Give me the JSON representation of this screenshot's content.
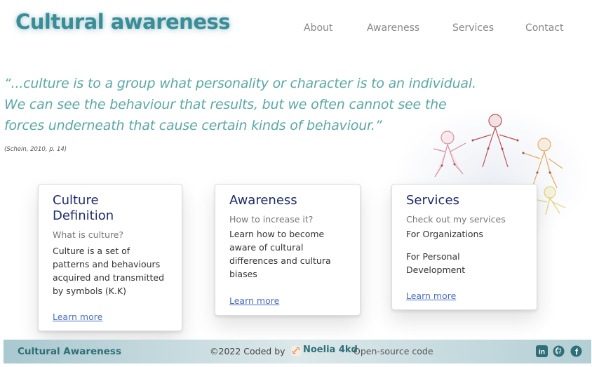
{
  "header": {
    "brand": "Cultural awareness",
    "nav": [
      {
        "label": "About"
      },
      {
        "label": "Awareness"
      },
      {
        "label": "Services"
      },
      {
        "label": "Contact"
      }
    ]
  },
  "hero": {
    "quote_lines": [
      "“...culture is to a group what personality or character is to an individual.",
      "We can see the behaviour that results, but we often cannot see the",
      "forces underneath that cause certain kinds of behaviour.”"
    ],
    "citation": "(Schein, 2010, p. 14)"
  },
  "cards": [
    {
      "title_lines": [
        "Culture",
        "Definition"
      ],
      "subtitle": "What is culture?",
      "body_lines": [
        "Culture is a set of",
        "patterns and behaviours",
        "acquired and transmitted",
        "by symbols (K.K)"
      ],
      "link": "Learn more"
    },
    {
      "title_lines": [
        "Awareness"
      ],
      "subtitle": "How to increase it?",
      "body_lines": [
        "Learn how to become",
        "aware of cultural",
        "differences and cultura",
        "biases"
      ],
      "link": "Learn more"
    },
    {
      "title_lines": [
        "Services"
      ],
      "subtitle": "Check out my services",
      "items": [
        "For Organizations",
        "For Personal",
        "Development"
      ],
      "link": "Learn more"
    }
  ],
  "footer": {
    "brand": "Cultural Awareness",
    "copyright": "©2022 Coded by",
    "author": "Noelia 4kd",
    "source_link": "Open-source code",
    "social": [
      {
        "icon": "linkedin-icon",
        "label": "in"
      },
      {
        "icon": "github-icon",
        "label": "gh"
      },
      {
        "icon": "facebook-icon",
        "label": "f"
      }
    ]
  },
  "colors": {
    "brand": "#3a8c97",
    "quote": "#5aa7a6",
    "card_title": "#1f2a6b",
    "link": "#4a6fc2"
  }
}
